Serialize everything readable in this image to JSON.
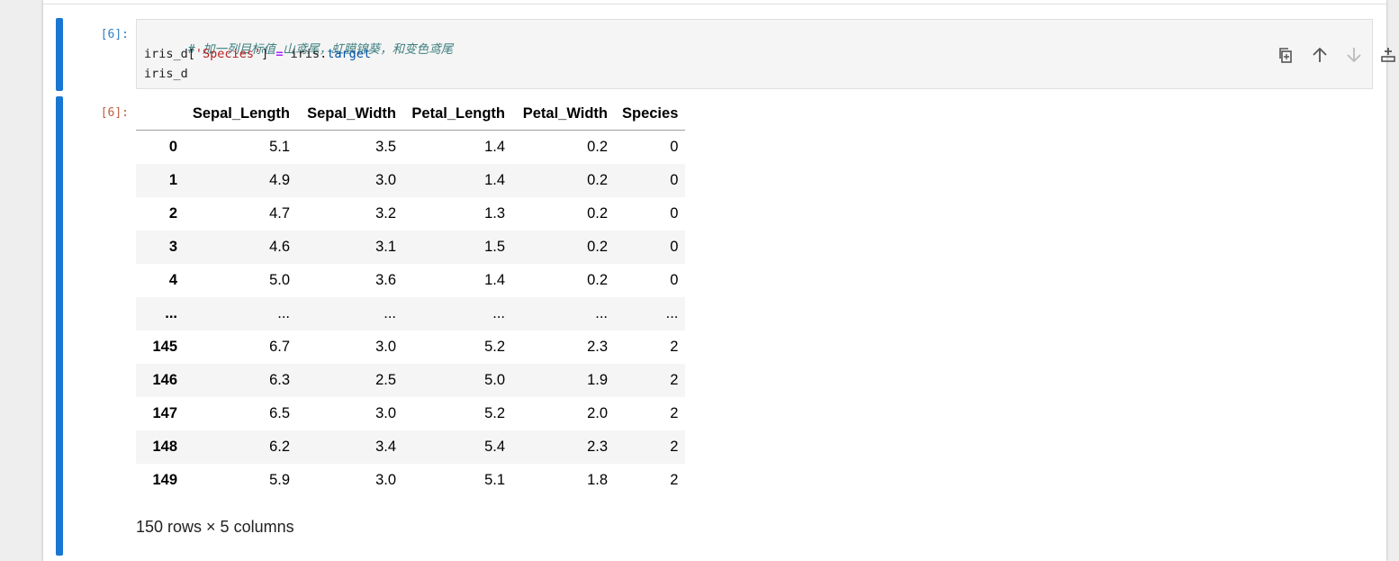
{
  "cell_in": {
    "prompt": "[6]:",
    "code": {
      "comment": "# 加一列目标值 山鸢尾，虹膜锦葵，和变色鸢尾",
      "line2_var": "iris_d",
      "line2_open": "[",
      "line2_string": "'Species'",
      "line2_close": "]",
      "line2_assign": "=",
      "line2_obj": "iris.",
      "line2_attr": "target",
      "line3": "iris_d"
    }
  },
  "toolbar": {
    "buttons": [
      {
        "name": "duplicate-cell-button",
        "icon": "copy-icon"
      },
      {
        "name": "move-cell-up-button",
        "icon": "arrow-up-icon"
      },
      {
        "name": "move-cell-down-button",
        "icon": "arrow-down-icon"
      },
      {
        "name": "insert-cell-above-button",
        "icon": "insert-above-icon"
      },
      {
        "name": "insert-cell-below-button",
        "icon": "insert-below-icon"
      },
      {
        "name": "delete-cell-button",
        "icon": "trash-icon"
      }
    ]
  },
  "cell_out": {
    "prompt": "[6]:",
    "table": {
      "columns": [
        "",
        "Sepal_Length",
        "Sepal_Width",
        "Petal_Length",
        "Petal_Width",
        "Species"
      ],
      "rows": [
        [
          "0",
          "5.1",
          "3.5",
          "1.4",
          "0.2",
          "0"
        ],
        [
          "1",
          "4.9",
          "3.0",
          "1.4",
          "0.2",
          "0"
        ],
        [
          "2",
          "4.7",
          "3.2",
          "1.3",
          "0.2",
          "0"
        ],
        [
          "3",
          "4.6",
          "3.1",
          "1.5",
          "0.2",
          "0"
        ],
        [
          "4",
          "5.0",
          "3.6",
          "1.4",
          "0.2",
          "0"
        ],
        [
          "...",
          "...",
          "...",
          "...",
          "...",
          "..."
        ],
        [
          "145",
          "6.7",
          "3.0",
          "5.2",
          "2.3",
          "2"
        ],
        [
          "146",
          "6.3",
          "2.5",
          "5.0",
          "1.9",
          "2"
        ],
        [
          "147",
          "6.5",
          "3.0",
          "5.2",
          "2.0",
          "2"
        ],
        [
          "148",
          "6.2",
          "3.4",
          "5.4",
          "2.3",
          "2"
        ],
        [
          "149",
          "5.9",
          "3.0",
          "5.1",
          "1.8",
          "2"
        ]
      ]
    },
    "shape_info": "150 rows × 5 columns"
  },
  "colors": {
    "collapser": "#1976d2",
    "in_prompt": "#307fc1",
    "out_prompt": "#bf5b3d"
  }
}
